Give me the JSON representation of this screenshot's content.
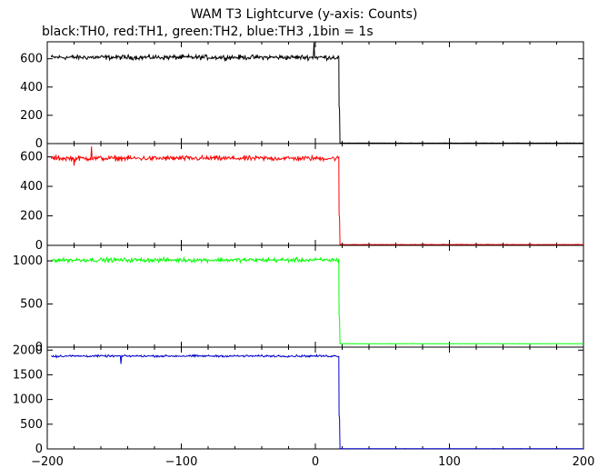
{
  "chart_data": {
    "type": "line",
    "title": "WAM T3 Lightcurve (y-axis: Counts)",
    "subtitle": "black:TH0, red:TH1, green:TH2, blue:TH3 ,1bin = 1s",
    "xlabel": "",
    "ylabel": "",
    "xlim": [
      -200,
      200
    ],
    "xticks": [
      -200,
      -100,
      0,
      100,
      200
    ],
    "xtick_labels": [
      "−200",
      "−100",
      "0",
      "100",
      "200"
    ],
    "grid": false,
    "series": [
      {
        "name": "TH0",
        "color": "#000000",
        "ylim": [
          0,
          720
        ],
        "yticks": [
          0,
          200,
          400,
          600
        ],
        "pre_level": 610,
        "pre_noise": 25,
        "drop_x": 18,
        "tail_value": 240,
        "post_level": 3,
        "events": [
          {
            "x": -1,
            "y": 715
          }
        ]
      },
      {
        "name": "TH1",
        "color": "#ff0000",
        "ylim": [
          0,
          690
        ],
        "yticks": [
          0,
          200,
          400,
          600
        ],
        "pre_level": 590,
        "pre_noise": 25,
        "drop_x": 18,
        "tail_value": 190,
        "post_level": 5,
        "events": [
          {
            "x": -167,
            "y": 670
          },
          {
            "x": -180,
            "y": 540
          }
        ]
      },
      {
        "name": "TH2",
        "color": "#00ff00",
        "ylim": [
          0,
          1180
        ],
        "yticks": [
          0,
          500,
          1000
        ],
        "pre_level": 1010,
        "pre_noise": 35,
        "drop_x": 18,
        "tail_value": 330,
        "post_level": 40,
        "events": []
      },
      {
        "name": "TH3",
        "color": "#0000cc",
        "ylim": [
          0,
          2060
        ],
        "yticks": [
          0,
          500,
          1000,
          1500,
          2000
        ],
        "pre_level": 1880,
        "pre_noise": 30,
        "drop_x": 18,
        "tail_value": 620,
        "post_level": 5,
        "events": [
          {
            "x": -145,
            "y": 1720
          },
          {
            "x": -193,
            "y": 1850
          }
        ]
      }
    ]
  }
}
